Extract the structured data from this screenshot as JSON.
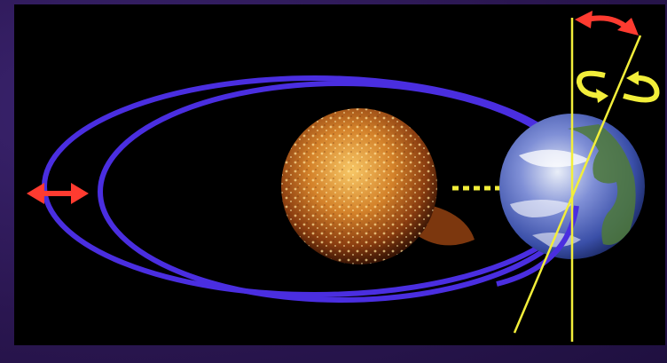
{
  "diagram": {
    "subject": "milankovitch-cycles",
    "labels": [],
    "colors": {
      "background_frame": "#2a1650",
      "panel": "#000000",
      "orbit": "#4a2ee0",
      "eccentricity_arrow": "#ff3b30",
      "obliquity_arrow": "#ff3b30",
      "precession_arrows": "#f2ee3a",
      "axis_lines": "#f2ee3a",
      "sun_sun_distance": "#f2ee3a"
    },
    "icons": [
      "sun-icon",
      "earth-icon"
    ]
  }
}
